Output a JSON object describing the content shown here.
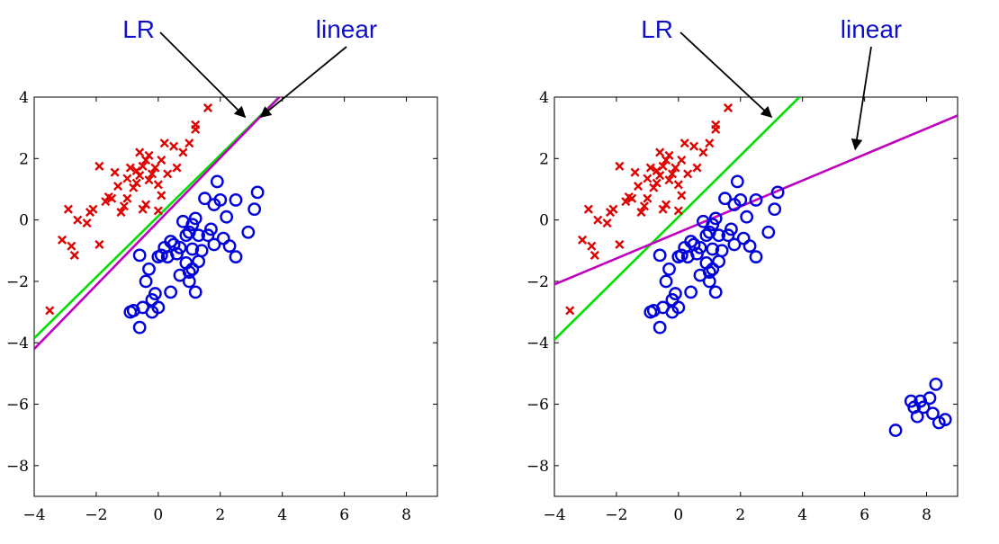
{
  "chart_data": [
    {
      "type": "scatter",
      "xlim": [
        -4,
        9
      ],
      "ylim": [
        -9,
        4
      ],
      "xticks": [
        -4,
        -2,
        0,
        2,
        4,
        6,
        8
      ],
      "yticks": [
        4,
        2,
        0,
        -2,
        -4,
        -6,
        -8
      ],
      "xtick_labels": [
        "−4",
        "−2",
        "0",
        "2",
        "4",
        "6",
        "8"
      ],
      "ytick_labels": [
        "4",
        "2",
        "0",
        "−2",
        "−4",
        "−6",
        "−8"
      ],
      "grid": false,
      "annotations": [
        {
          "text": "LR",
          "color": "#1010c8",
          "target": [
            2.8,
            3.35
          ]
        },
        {
          "text": "linear",
          "color": "#1010c8",
          "target": [
            3.3,
            3.35
          ]
        }
      ],
      "lines": [
        {
          "color": "#00e000",
          "points": [
            [
              -4,
              -3.85
            ],
            [
              4,
              4.1
            ]
          ]
        },
        {
          "color": "#c000c0",
          "points": [
            [
              -4,
              -4.2
            ],
            [
              4,
              4.1
            ]
          ]
        }
      ],
      "series": [
        {
          "marker": "x",
          "color": "#e00000",
          "points": [
            [
              -3.5,
              -2.95
            ],
            [
              -3.1,
              -0.65
            ],
            [
              -2.9,
              0.35
            ],
            [
              -2.8,
              -0.85
            ],
            [
              -2.7,
              -1.15
            ],
            [
              -2.6,
              0.0
            ],
            [
              -2.3,
              -0.1
            ],
            [
              -2.2,
              0.25
            ],
            [
              -2.1,
              0.35
            ],
            [
              -1.9,
              -0.8
            ],
            [
              -1.9,
              1.75
            ],
            [
              -1.7,
              0.6
            ],
            [
              -1.6,
              0.75
            ],
            [
              -1.5,
              0.7
            ],
            [
              -1.4,
              1.55
            ],
            [
              -1.3,
              1.1
            ],
            [
              -1.2,
              0.25
            ],
            [
              -1.1,
              0.45
            ],
            [
              -1.0,
              1.35
            ],
            [
              -1.0,
              0.7
            ],
            [
              -0.9,
              1.7
            ],
            [
              -0.8,
              1.05
            ],
            [
              -0.7,
              1.6
            ],
            [
              -0.7,
              1.2
            ],
            [
              -0.6,
              2.2
            ],
            [
              -0.6,
              1.45
            ],
            [
              -0.5,
              1.75
            ],
            [
              -0.5,
              0.35
            ],
            [
              -0.4,
              0.5
            ],
            [
              -0.4,
              1.95
            ],
            [
              -0.3,
              2.1
            ],
            [
              -0.3,
              1.3
            ],
            [
              -0.2,
              1.5
            ],
            [
              -0.1,
              1.7
            ],
            [
              0.0,
              0.3
            ],
            [
              0.0,
              1.15
            ],
            [
              0.1,
              1.95
            ],
            [
              0.1,
              0.8
            ],
            [
              0.2,
              2.5
            ],
            [
              0.3,
              1.5
            ],
            [
              0.5,
              2.4
            ],
            [
              0.6,
              1.7
            ],
            [
              0.8,
              2.2
            ],
            [
              1.0,
              2.5
            ],
            [
              1.2,
              2.95
            ],
            [
              1.2,
              3.1
            ],
            [
              1.6,
              3.65
            ]
          ]
        },
        {
          "marker": "o",
          "color": "#0000dd",
          "points": [
            [
              -0.9,
              -3.0
            ],
            [
              -0.8,
              -2.95
            ],
            [
              -0.6,
              -1.15
            ],
            [
              -0.6,
              -3.5
            ],
            [
              -0.5,
              -2.85
            ],
            [
              -0.4,
              -2.0
            ],
            [
              -0.3,
              -1.6
            ],
            [
              -0.2,
              -2.6
            ],
            [
              -0.2,
              -3.0
            ],
            [
              -0.1,
              -2.4
            ],
            [
              0.0,
              -1.2
            ],
            [
              0.0,
              -2.85
            ],
            [
              0.1,
              -1.15
            ],
            [
              0.2,
              -0.9
            ],
            [
              0.3,
              -1.2
            ],
            [
              0.4,
              -0.7
            ],
            [
              0.4,
              -2.35
            ],
            [
              0.5,
              -0.8
            ],
            [
              0.6,
              -1.1
            ],
            [
              0.7,
              -0.9
            ],
            [
              0.7,
              -1.8
            ],
            [
              0.8,
              -0.05
            ],
            [
              0.9,
              -0.5
            ],
            [
              0.9,
              -1.4
            ],
            [
              1.0,
              -1.7
            ],
            [
              1.0,
              -0.4
            ],
            [
              1.0,
              -2.0
            ],
            [
              1.1,
              -0.15
            ],
            [
              1.1,
              -0.95
            ],
            [
              1.1,
              -1.6
            ],
            [
              1.2,
              -2.35
            ],
            [
              1.2,
              0.05
            ],
            [
              1.3,
              -0.5
            ],
            [
              1.3,
              -1.35
            ],
            [
              1.4,
              -1.0
            ],
            [
              1.5,
              0.7
            ],
            [
              1.6,
              -0.5
            ],
            [
              1.7,
              -0.3
            ],
            [
              1.8,
              -0.8
            ],
            [
              1.8,
              0.5
            ],
            [
              1.9,
              1.25
            ],
            [
              2.0,
              0.65
            ],
            [
              2.1,
              -0.6
            ],
            [
              2.2,
              0.1
            ],
            [
              2.3,
              -0.85
            ],
            [
              2.5,
              0.65
            ],
            [
              2.5,
              -1.2
            ],
            [
              2.9,
              -0.4
            ],
            [
              3.1,
              0.35
            ],
            [
              3.2,
              0.9
            ]
          ]
        }
      ]
    },
    {
      "type": "scatter",
      "xlim": [
        -4,
        9
      ],
      "ylim": [
        -9,
        4
      ],
      "xticks": [
        -4,
        -2,
        0,
        2,
        4,
        6,
        8
      ],
      "yticks": [
        4,
        2,
        0,
        -2,
        -4,
        -6,
        -8
      ],
      "xtick_labels": [
        "−4",
        "−2",
        "0",
        "2",
        "4",
        "6",
        "8"
      ],
      "ytick_labels": [
        "4",
        "2",
        "0",
        "−2",
        "−4",
        "−6",
        "−8"
      ],
      "grid": false,
      "annotations": [
        {
          "text": "LR",
          "color": "#1010c8",
          "target": [
            3.0,
            3.35
          ]
        },
        {
          "text": "linear",
          "color": "#1010c8",
          "target": [
            5.7,
            2.3
          ]
        }
      ],
      "lines": [
        {
          "color": "#00e000",
          "points": [
            [
              -4,
              -3.9
            ],
            [
              4,
              4.1
            ]
          ]
        },
        {
          "color": "#c000c0",
          "points": [
            [
              -4,
              -2.1
            ],
            [
              9,
              3.4
            ]
          ]
        }
      ],
      "series": [
        {
          "marker": "x",
          "color": "#e00000",
          "points": [
            [
              -3.5,
              -2.95
            ],
            [
              -3.1,
              -0.65
            ],
            [
              -2.9,
              0.35
            ],
            [
              -2.8,
              -0.85
            ],
            [
              -2.7,
              -1.15
            ],
            [
              -2.6,
              0.0
            ],
            [
              -2.3,
              -0.1
            ],
            [
              -2.2,
              0.25
            ],
            [
              -2.1,
              0.35
            ],
            [
              -1.9,
              -0.8
            ],
            [
              -1.9,
              1.75
            ],
            [
              -1.7,
              0.6
            ],
            [
              -1.6,
              0.75
            ],
            [
              -1.5,
              0.7
            ],
            [
              -1.4,
              1.55
            ],
            [
              -1.3,
              1.1
            ],
            [
              -1.2,
              0.25
            ],
            [
              -1.1,
              0.45
            ],
            [
              -1.0,
              1.35
            ],
            [
              -1.0,
              0.7
            ],
            [
              -0.9,
              1.7
            ],
            [
              -0.8,
              1.05
            ],
            [
              -0.7,
              1.6
            ],
            [
              -0.7,
              1.2
            ],
            [
              -0.6,
              2.2
            ],
            [
              -0.6,
              1.45
            ],
            [
              -0.5,
              1.75
            ],
            [
              -0.5,
              0.35
            ],
            [
              -0.4,
              0.5
            ],
            [
              -0.4,
              1.95
            ],
            [
              -0.3,
              2.1
            ],
            [
              -0.3,
              1.3
            ],
            [
              -0.2,
              1.5
            ],
            [
              -0.1,
              1.7
            ],
            [
              0.0,
              0.3
            ],
            [
              0.0,
              1.15
            ],
            [
              0.1,
              1.95
            ],
            [
              0.1,
              0.8
            ],
            [
              0.2,
              2.5
            ],
            [
              0.3,
              1.5
            ],
            [
              0.5,
              2.4
            ],
            [
              0.6,
              1.7
            ],
            [
              0.8,
              2.2
            ],
            [
              1.0,
              2.5
            ],
            [
              1.2,
              2.95
            ],
            [
              1.2,
              3.1
            ],
            [
              1.6,
              3.65
            ]
          ]
        },
        {
          "marker": "o",
          "color": "#0000dd",
          "points": [
            [
              -0.9,
              -3.0
            ],
            [
              -0.8,
              -2.95
            ],
            [
              -0.6,
              -1.15
            ],
            [
              -0.6,
              -3.5
            ],
            [
              -0.5,
              -2.85
            ],
            [
              -0.4,
              -2.0
            ],
            [
              -0.3,
              -1.6
            ],
            [
              -0.2,
              -2.6
            ],
            [
              -0.2,
              -3.0
            ],
            [
              -0.1,
              -2.4
            ],
            [
              0.0,
              -1.2
            ],
            [
              0.0,
              -2.85
            ],
            [
              0.1,
              -1.15
            ],
            [
              0.2,
              -0.9
            ],
            [
              0.3,
              -1.2
            ],
            [
              0.4,
              -0.7
            ],
            [
              0.4,
              -2.35
            ],
            [
              0.5,
              -0.8
            ],
            [
              0.6,
              -1.1
            ],
            [
              0.7,
              -0.9
            ],
            [
              0.7,
              -1.8
            ],
            [
              0.8,
              -0.05
            ],
            [
              0.9,
              -0.5
            ],
            [
              0.9,
              -1.4
            ],
            [
              1.0,
              -1.7
            ],
            [
              1.0,
              -0.4
            ],
            [
              1.0,
              -2.0
            ],
            [
              1.1,
              -0.15
            ],
            [
              1.1,
              -0.95
            ],
            [
              1.1,
              -1.6
            ],
            [
              1.2,
              -2.35
            ],
            [
              1.2,
              0.05
            ],
            [
              1.3,
              -0.5
            ],
            [
              1.3,
              -1.35
            ],
            [
              1.4,
              -1.0
            ],
            [
              1.5,
              0.7
            ],
            [
              1.6,
              -0.5
            ],
            [
              1.7,
              -0.3
            ],
            [
              1.8,
              -0.8
            ],
            [
              1.8,
              0.5
            ],
            [
              1.9,
              1.25
            ],
            [
              2.0,
              0.65
            ],
            [
              2.1,
              -0.6
            ],
            [
              2.2,
              0.1
            ],
            [
              2.3,
              -0.85
            ],
            [
              2.5,
              0.65
            ],
            [
              2.5,
              -1.2
            ],
            [
              2.9,
              -0.4
            ],
            [
              3.1,
              0.35
            ],
            [
              3.2,
              0.9
            ],
            [
              7.0,
              -6.85
            ],
            [
              7.5,
              -5.9
            ],
            [
              7.6,
              -6.1
            ],
            [
              7.7,
              -6.4
            ],
            [
              7.8,
              -5.9
            ],
            [
              7.9,
              -6.1
            ],
            [
              8.1,
              -5.8
            ],
            [
              8.2,
              -6.3
            ],
            [
              8.3,
              -5.35
            ],
            [
              8.4,
              -6.6
            ],
            [
              8.6,
              -6.5
            ]
          ]
        }
      ]
    }
  ]
}
